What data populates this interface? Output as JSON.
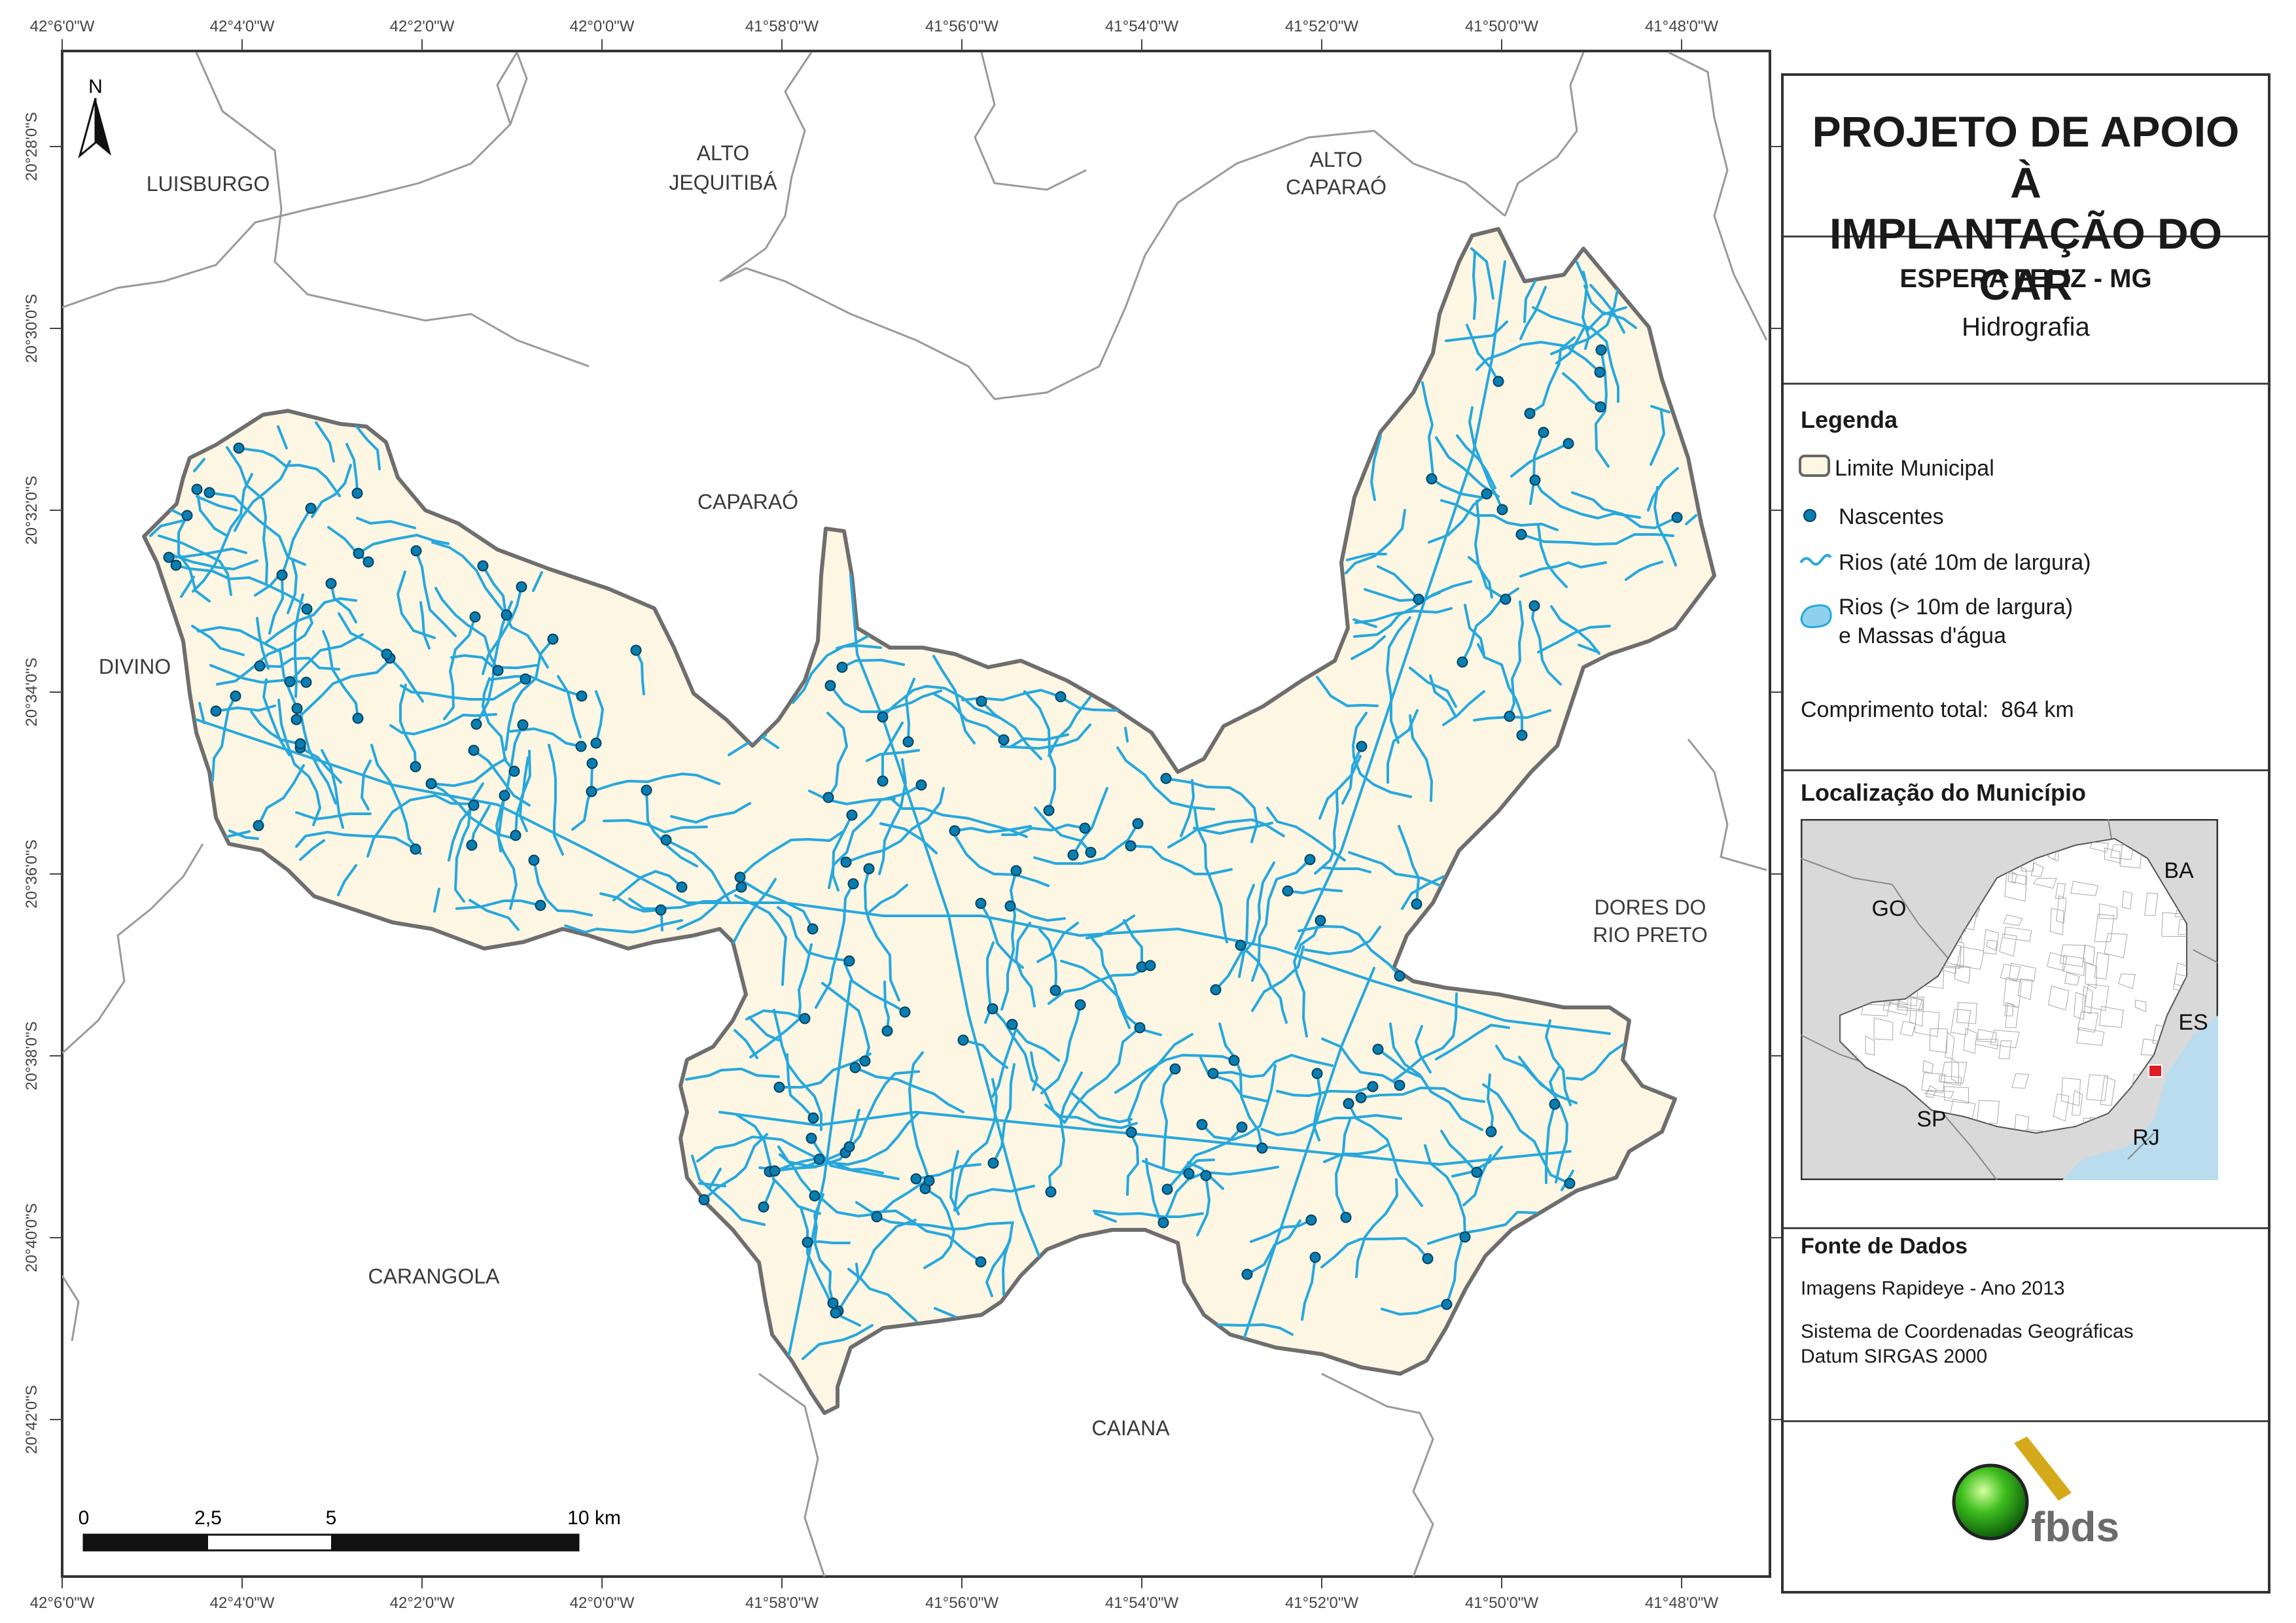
{
  "header": {
    "title": "PROJETO DE APOIO À IMPLANTAÇÃO DO CAR",
    "municipality": "ESPERA FELIZ - MG",
    "theme": "Hidrografia"
  },
  "legend": {
    "heading": "Legenda",
    "items": [
      {
        "label": "Limite Municipal",
        "color": "#666666",
        "fill": "#fdf6e3"
      },
      {
        "label": "Nascentes",
        "color": "#0a7db1"
      },
      {
        "label": "Rios (até 10m de largura)",
        "color": "#27a8dc"
      },
      {
        "label": "Rios (> 10m de largura) e Massas d'água",
        "color": "#8fd0ef"
      }
    ],
    "total_length_label": "Comprimento total:",
    "total_length_value": "864 km"
  },
  "location": {
    "heading": "Localização do Município",
    "states": [
      "BA",
      "GO",
      "ES",
      "SP",
      "RJ"
    ],
    "highlight_color": "#e01b24"
  },
  "sources": {
    "heading": "Fonte de Dados",
    "lines": [
      "Imagens Rapideye - Ano 2013",
      "Sistema de Coordenadas Geográficas",
      "Datum SIRGAS 2000"
    ]
  },
  "logo": {
    "text": "fbds"
  },
  "map": {
    "north_label": "N",
    "neighbors": [
      "LUISBURGO",
      "ALTO JEQUITIBÁ",
      "ALTO CAPARAÓ",
      "CAPARAÓ",
      "DIVINO",
      "DORES DO RIO PRETO",
      "CARANGOLA",
      "CAIANA"
    ],
    "lon_ticks": [
      "42°6'0\"W",
      "42°4'0\"W",
      "42°2'0\"W",
      "42°0'0\"W",
      "41°58'0\"W",
      "41°56'0\"W",
      "41°54'0\"W",
      "41°52'0\"W",
      "41°50'0\"W",
      "41°48'0\"W"
    ],
    "lat_ticks": [
      "20°28'0\"S",
      "20°30'0\"S",
      "20°32'0\"S",
      "20°34'0\"S",
      "20°36'0\"S",
      "20°38'0\"S",
      "20°40'0\"S",
      "20°42'0\"S"
    ],
    "scale_labels": [
      "0",
      "2,5",
      "5",
      "10 km"
    ],
    "colors": {
      "municipality": "#fdf6e3",
      "river": "#27a8dc",
      "spring": "#0a7db1",
      "boundary": "#6e6e6e"
    }
  }
}
